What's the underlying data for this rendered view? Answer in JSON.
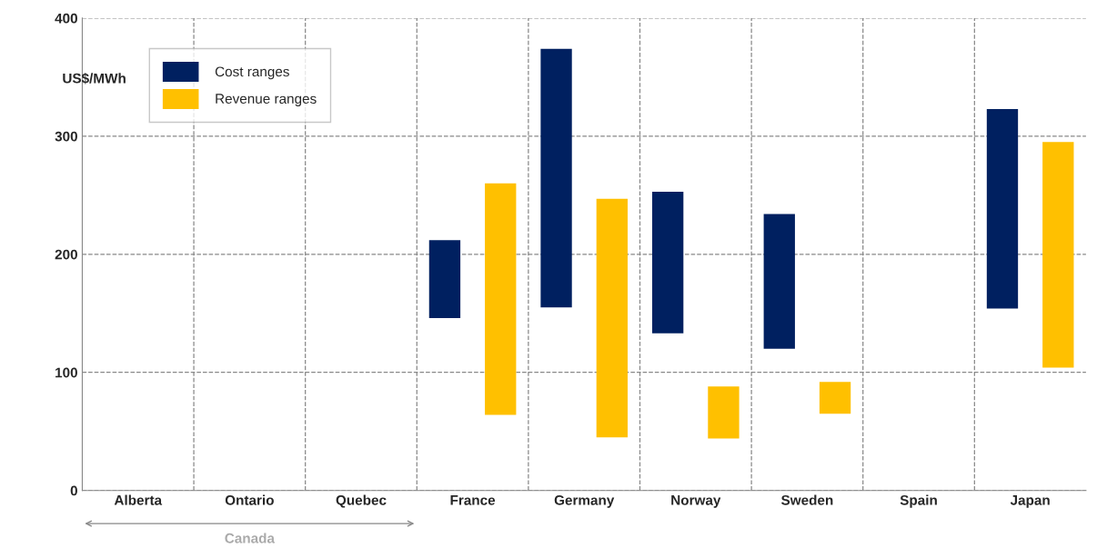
{
  "chart_data": {
    "type": "bar",
    "ylabel": "US$/MWh",
    "categories": [
      "Alberta",
      "Ontario",
      "Quebec",
      "France",
      "Germany",
      "Norway",
      "Sweden",
      "Spain",
      "Japan"
    ],
    "series": [
      {
        "name": "Cost ranges",
        "color": "#002060",
        "base": [
          null,
          null,
          null,
          146,
          155,
          133,
          120,
          null,
          154
        ],
        "values": [
          null,
          null,
          null,
          66,
          219,
          120,
          114,
          null,
          169
        ]
      },
      {
        "name": "Revenue ranges",
        "color": "#ffc000",
        "base": [
          null,
          null,
          null,
          64,
          45,
          44,
          65,
          null,
          104
        ],
        "values": [
          null,
          null,
          null,
          196,
          202,
          44,
          27,
          null,
          191
        ]
      }
    ],
    "ylim": [
      0,
      400
    ],
    "yticks": [
      0,
      100,
      200,
      300,
      400
    ],
    "grid": true,
    "legend": "top left",
    "annotations": [
      "Canada"
    ]
  }
}
